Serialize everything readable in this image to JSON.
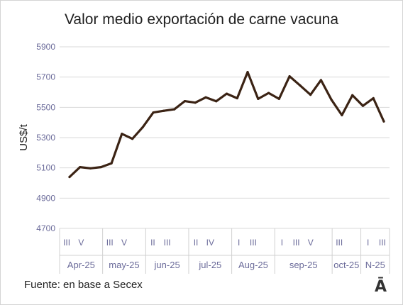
{
  "chart_data": {
    "type": "line",
    "title": "Valor medio exportación de carne vacuna",
    "ylabel": "US$/t",
    "xlabel": "",
    "ylim": [
      4700,
      5900
    ],
    "yticks": [
      4700,
      4900,
      5100,
      5300,
      5500,
      5700,
      5900
    ],
    "grid": true,
    "legend": "none",
    "series": [
      {
        "color": "#3b2314",
        "values": [
          5040,
          5105,
          5097,
          5105,
          5130,
          5325,
          5292,
          5370,
          5466,
          5477,
          5487,
          5541,
          5531,
          5566,
          5540,
          5590,
          5560,
          5733,
          5556,
          5595,
          5556,
          5705,
          5645,
          5583,
          5680,
          5550,
          5448,
          5580,
          5510,
          5560,
          5407
        ]
      }
    ],
    "week_labels": [
      "III",
      "V",
      "",
      "III",
      "V",
      "",
      "II",
      "III",
      "",
      "II",
      "IV",
      "",
      "I",
      "III",
      "",
      "I",
      "III",
      "V",
      "",
      "III",
      "",
      "I",
      "III"
    ],
    "months": [
      {
        "label": "Apr-25",
        "weeks": [
          "III",
          "V"
        ]
      },
      {
        "label": "may-25",
        "weeks": [
          "III",
          "V"
        ]
      },
      {
        "label": "jun-25",
        "weeks": [
          "II",
          "III"
        ]
      },
      {
        "label": "jul-25",
        "weeks": [
          "II",
          "IV"
        ]
      },
      {
        "label": "Aug-25",
        "weeks": [
          "I",
          "III"
        ]
      },
      {
        "label": "sep-25",
        "weeks": [
          "I",
          "III",
          "V"
        ]
      },
      {
        "label": "oct-25",
        "weeks": [
          "III"
        ]
      },
      {
        "label": "N-25",
        "weeks": [
          "I",
          "III"
        ]
      }
    ]
  },
  "source": "Fuente: en base a Secex",
  "logo_text": "Ā"
}
